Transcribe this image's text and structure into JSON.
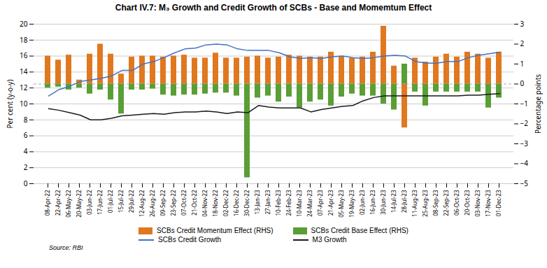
{
  "chart_data": {
    "type": "bar",
    "title": "Chart IV.7: M₃ Growth and Credit Growth of SCBs - Base and Momemtum Effect",
    "ylabel": "Per cent (y-o-y)",
    "y2label": "Percentage points",
    "source": "Source: RBI",
    "categories": [
      "08-Apr-22",
      "22-Apr-22",
      "06-May-22",
      "20-May-22",
      "03-Jun-22",
      "17-Jun-22",
      "01-Jul-22",
      "15-Jul-22",
      "29-Jul-22",
      "12-Aug-22",
      "26-Aug-22",
      "09-Sep-22",
      "23-Sep-22",
      "07-Oct-22",
      "21-Oct-22",
      "04-Nov-22",
      "18-Nov-22",
      "02-Dec-22",
      "16-Dec-22",
      "30-Dec-22",
      "13-Jan-23",
      "27-Jan-23",
      "10-Feb-23",
      "24-Feb-23",
      "10-Mar-23",
      "24-Mar-23",
      "07-Apr-23",
      "21-Apr-23",
      "05-May-23",
      "19-May-23",
      "02-Jun-23",
      "16-Jun-23",
      "30-Jun-23",
      "14-Jul-23",
      "28-Jul-23",
      "11-Aug-23",
      "25-Aug-23",
      "08-Sep-23",
      "22-Sep-23",
      "06-Oct-23",
      "20-Oct-23",
      "03-Nov-23",
      "17-Nov-23",
      "01-Dec-23"
    ],
    "series": [
      {
        "name": "SCBs Credit Momentum Effect (RHS)",
        "type": "bar",
        "axis": "y2",
        "color": "#E07820",
        "values": [
          1.4,
          1.2,
          1.45,
          0.2,
          1.5,
          2.0,
          1.5,
          0.5,
          1.35,
          1.4,
          1.4,
          1.35,
          1.4,
          1.45,
          1.3,
          1.3,
          1.55,
          1.3,
          1.3,
          1.35,
          1.4,
          1.3,
          1.35,
          1.45,
          1.4,
          1.35,
          1.35,
          1.6,
          1.35,
          1.3,
          1.35,
          1.6,
          2.9,
          0.9,
          -2.2,
          1.3,
          1.1,
          1.35,
          1.5,
          1.35,
          1.6,
          1.5,
          1.3,
          1.6
        ]
      },
      {
        "name": "SCBs Credit Base Effect (RHS)",
        "type": "bar",
        "axis": "y2",
        "color": "#5A9E35",
        "values": [
          -0.2,
          -0.15,
          -0.3,
          -0.2,
          -0.5,
          -0.3,
          -0.8,
          -1.5,
          -0.3,
          -0.3,
          -0.25,
          -0.55,
          -0.6,
          -0.55,
          -0.55,
          -0.5,
          -0.45,
          -0.45,
          -0.6,
          -4.7,
          -0.7,
          -0.6,
          -0.9,
          -0.65,
          -1.2,
          -0.9,
          -0.8,
          -1.1,
          -0.65,
          -0.5,
          -0.6,
          -0.6,
          -1.0,
          -1.3,
          1.0,
          -0.4,
          -1.1,
          -0.4,
          -0.4,
          -0.4,
          -0.4,
          -0.4,
          -1.2,
          -0.7
        ]
      },
      {
        "name": "SCBs Credit Growth",
        "type": "line",
        "color": "#4472C4",
        "values": [
          11.0,
          11.8,
          12.2,
          12.8,
          13.0,
          13.2,
          13.5,
          14.2,
          14.2,
          15.0,
          15.3,
          15.8,
          16.4,
          16.9,
          17.0,
          17.4,
          17.5,
          17.4,
          16.9,
          16.7,
          16.7,
          16.7,
          16.4,
          15.9,
          15.7,
          15.8,
          15.7,
          15.9,
          16.0,
          15.8,
          15.7,
          15.8,
          16.0,
          16.1,
          16.0,
          15.3,
          15.1,
          15.1,
          15.3,
          15.3,
          15.8,
          16.1,
          16.3,
          16.5
        ]
      },
      {
        "name": "M3 Growth",
        "type": "line",
        "color": "#1A1A1A",
        "values": [
          9.4,
          9.2,
          8.9,
          8.6,
          8.0,
          8.0,
          8.2,
          8.5,
          8.6,
          8.7,
          8.8,
          8.7,
          8.9,
          9.0,
          9.0,
          9.1,
          9.0,
          8.8,
          9.0,
          8.9,
          9.8,
          9.6,
          9.5,
          9.5,
          9.5,
          9.0,
          9.3,
          9.5,
          9.7,
          9.8,
          10.4,
          10.8,
          11.0,
          11.0,
          11.0,
          11.0,
          11.0,
          11.0,
          11.0,
          11.0,
          11.1,
          11.1,
          11.2,
          11.3
        ]
      }
    ],
    "ylim": [
      0,
      20
    ],
    "yticks": [
      0,
      2,
      4,
      6,
      8,
      10,
      12,
      14,
      16,
      18,
      20
    ],
    "y2lim": [
      -5,
      3
    ],
    "y2ticks": [
      -5,
      -4,
      -3,
      -2,
      -1,
      0,
      1,
      2,
      3
    ],
    "grid": true,
    "legend": "bottom"
  }
}
